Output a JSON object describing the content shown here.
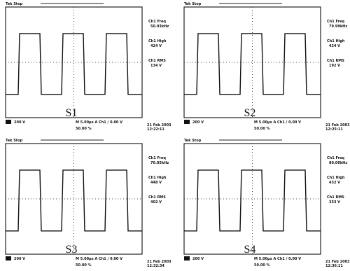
{
  "panels": [
    {
      "label": "S1",
      "status": "Tek Stop",
      "meas": [
        {
          "name": "Ch1 Freq",
          "value": "50.03kHz"
        },
        {
          "name": "Ch1 High",
          "value": "424 V"
        },
        {
          "name": "Ch1 RMS",
          "value": "134 V"
        }
      ],
      "ch_scale": "200 V",
      "timebase": "M 5.00μs A Ch1 / 0.00 V",
      "trigger_pos": "50.00 %",
      "date": "21 Feb 2003",
      "time": "12:22:11"
    },
    {
      "label": "S2",
      "status": "Tek Stop",
      "meas": [
        {
          "name": "Ch1 Freq",
          "value": "79.99kHz"
        },
        {
          "name": "Ch1 High",
          "value": "424 V"
        },
        {
          "name": "Ch1 RMS",
          "value": "192 V"
        }
      ],
      "ch_scale": "200 V",
      "timebase": "M 5.00μs A Ch1 / 0.00 V",
      "trigger_pos": "50.00 %",
      "date": "21 Feb 2003",
      "time": "12:25:11"
    },
    {
      "label": "S3",
      "status": "Tek Stop",
      "meas": [
        {
          "name": "Ch1 Freq",
          "value": "70.05kHz"
        },
        {
          "name": "Ch1 High",
          "value": "448 V"
        },
        {
          "name": "Ch1 RMS",
          "value": "402 V"
        }
      ],
      "ch_scale": "200 V",
      "timebase": "M 5.00μs A Ch1 / 0.00 V",
      "trigger_pos": "50.00 %",
      "date": "21 Feb 2003",
      "time": "12:32:34"
    },
    {
      "label": "S4",
      "status": "Tek Stop",
      "meas": [
        {
          "name": "Ch1 Freq",
          "value": "80.00kHz"
        },
        {
          "name": "Ch1 High",
          "value": "432 V"
        },
        {
          "name": "Ch1 RMS",
          "value": "353 V"
        }
      ],
      "ch_scale": "200 V",
      "timebase": "M 5.00μs A Ch1 / 0.00 V",
      "trigger_pos": "50.00 %",
      "date": "21 Feb 2003",
      "time": "12:36:11"
    }
  ]
}
